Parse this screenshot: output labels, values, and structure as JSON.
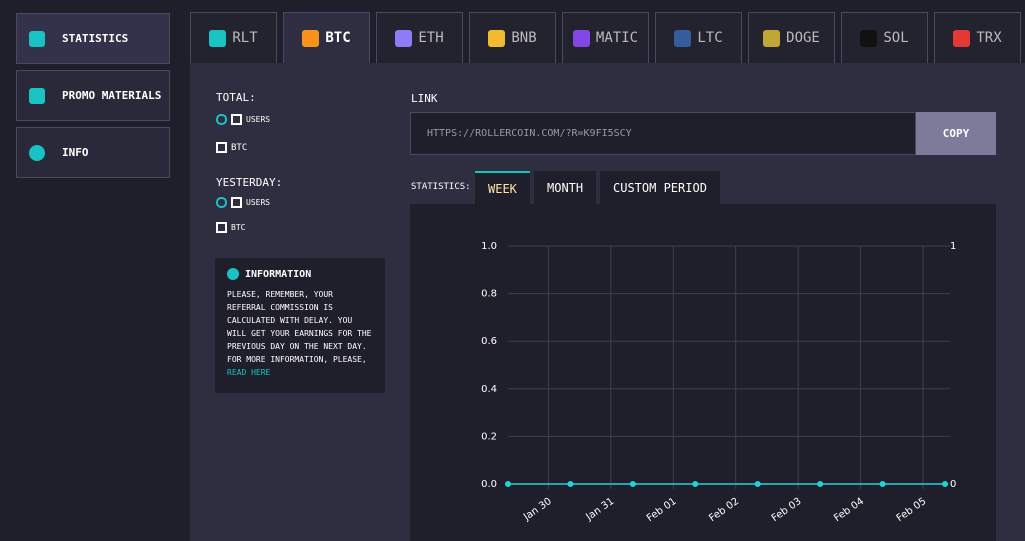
{
  "sidebar": {
    "items": [
      "Statistics",
      "Promo Materials",
      "Info"
    ]
  },
  "tabs": [
    {
      "label": "RLT",
      "color": "#19c3c3"
    },
    {
      "label": "BTC",
      "color": "#f7931a",
      "active": true
    },
    {
      "label": "ETH",
      "color": "#8c7df7"
    },
    {
      "label": "BNB",
      "color": "#f3ba2f"
    },
    {
      "label": "MATIC",
      "color": "#8247e5"
    },
    {
      "label": "LTC",
      "color": "#345d9d"
    },
    {
      "label": "DOGE",
      "color": "#c2a633"
    },
    {
      "label": "SOL",
      "color": "#111111"
    },
    {
      "label": "TRX",
      "color": "#e53935"
    }
  ],
  "total": {
    "title": "Total:",
    "users_label": "Users",
    "coin_label": "BTC"
  },
  "yesterday": {
    "title": "Yesterday:",
    "users_label": "Users",
    "coin_label": "BTC"
  },
  "information": {
    "title": "Information",
    "text": "Please, remember, your referral commission is calculated with delay. You will get your earnings for the previous day on the next day. For more information, please,",
    "link": "read here"
  },
  "link": {
    "label": "Link",
    "url": "https://rollercoin.com/?r=k9fi5scy",
    "button": "Copy"
  },
  "statistics": {
    "label": "Statistics:",
    "periods": [
      {
        "label": "Week",
        "active": true
      },
      {
        "label": "Month"
      },
      {
        "label": "Custom Period"
      }
    ]
  },
  "chart_data": {
    "type": "line",
    "categories": [
      null,
      "Jan 30",
      "Jan 31",
      "Feb 01",
      "Feb 02",
      "Feb 03",
      "Feb 04",
      "Feb 05"
    ],
    "series": [
      {
        "color": "#22d3d3",
        "values": [
          0,
          0,
          0,
          0,
          0,
          0,
          0,
          0
        ]
      }
    ],
    "ylim": [
      0,
      1
    ],
    "yticks": [
      {
        "value": 0,
        "label": "0.0"
      },
      {
        "value": 0.2,
        "label": "0.2"
      },
      {
        "value": 0.4,
        "label": "0.4"
      },
      {
        "value": 0.6,
        "label": "0.6"
      },
      {
        "value": 0.8,
        "label": "0.8"
      },
      {
        "value": 1,
        "label": "1.0"
      }
    ],
    "y2lim": [
      0,
      1
    ],
    "y2ticks": [
      0,
      1
    ],
    "grid": true
  }
}
